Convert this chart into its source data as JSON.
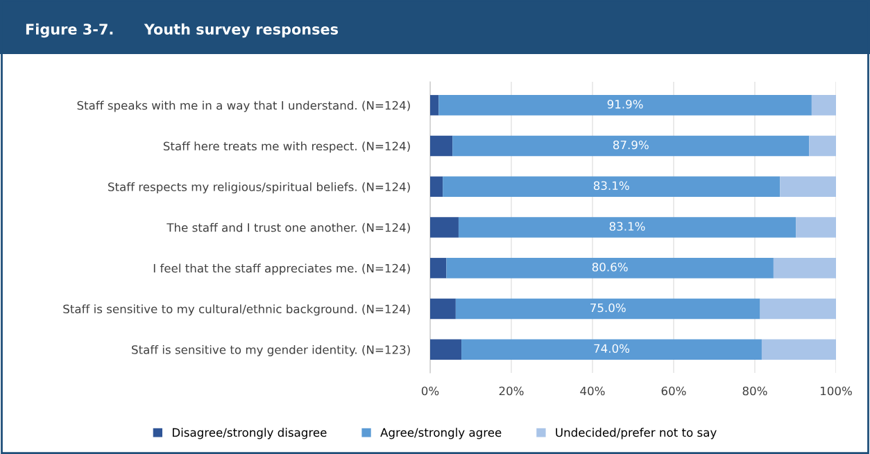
{
  "chart_data": {
    "type": "bar",
    "orientation": "horizontal",
    "stacked": true,
    "title": "Figure 3-7.      Youth survey responses",
    "categories": [
      "Staff speaks with me in a way that I understand. (N=124)",
      "Staff here treats me with respect. (N=124)",
      "Staff respects my religious/spiritual beliefs. (N=124)",
      "The staff and I trust one another. (N=124)",
      "I feel that the staff appreciates me. (N=124)",
      "Staff is sensitive to my cultural/ethnic background. (N=124)",
      "Staff is sensitive to my gender identity. (N=123)"
    ],
    "series": [
      {
        "name": "Disagree/strongly disagree",
        "color": "#2f5597",
        "values": [
          2.1,
          5.5,
          3.1,
          7.0,
          4.0,
          6.3,
          7.7
        ]
      },
      {
        "name": "Agree/strongly agree",
        "color": "#5b9bd5",
        "values": [
          91.9,
          87.9,
          83.1,
          83.1,
          80.6,
          75.0,
          74.0
        ],
        "value_labels": [
          "91.9%",
          "87.9%",
          "83.1%",
          "83.1%",
          "80.6%",
          "75.0%",
          "74.0%"
        ]
      },
      {
        "name": "Undecided/prefer not to say",
        "color": "#a9c4e8",
        "values": [
          6.0,
          6.6,
          13.8,
          9.9,
          15.4,
          18.7,
          18.3
        ]
      }
    ],
    "xlim": [
      0,
      100
    ],
    "xticks": [
      {
        "value": 0,
        "label": "0%"
      },
      {
        "value": 20,
        "label": "20%"
      },
      {
        "value": 40,
        "label": "40%"
      },
      {
        "value": 60,
        "label": "60%"
      },
      {
        "value": 80,
        "label": "80%"
      },
      {
        "value": 100,
        "label": "100%"
      }
    ],
    "grid": "x",
    "legend": "bottom"
  }
}
